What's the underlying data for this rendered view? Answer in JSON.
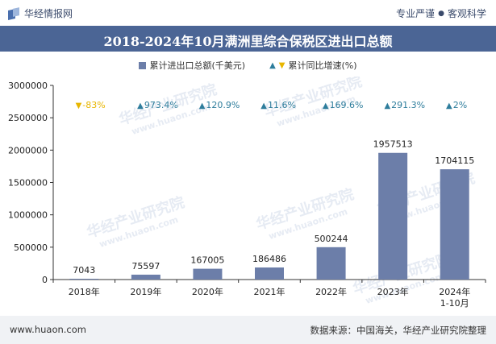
{
  "header": {
    "brand": "华经情报网",
    "slogan_left": "专业严谨",
    "slogan_sep": "●",
    "slogan_right": "客观科学"
  },
  "title": "2018-2024年10月满洲里综合保税区进出口总额",
  "legend": {
    "bar_label": "累计进出口总额(千美元)",
    "line_label": "累计同比增速(%)"
  },
  "watermark": {
    "cn": "华经产业研究院",
    "en": "www.huaon.com"
  },
  "colors": {
    "bar": "#6c7ea9",
    "header_band": "#4b6595",
    "pct_positive": "#2e7d9c",
    "pct_negative": "#e8b600"
  },
  "chart_data": {
    "type": "bar",
    "categories": [
      "2018年",
      "2019年",
      "2020年",
      "2021年",
      "2022年",
      "2023年",
      "2024年\n1-10月"
    ],
    "series": [
      {
        "name": "累计进出口总额(千美元)",
        "values": [
          7043,
          75597,
          167005,
          186486,
          500244,
          1957513,
          1704115
        ]
      },
      {
        "name": "累计同比增速(%)",
        "values": [
          -83,
          973.4,
          120.9,
          11.6,
          169.6,
          291.3,
          2
        ]
      }
    ],
    "value_labels": [
      "7043",
      "75597",
      "167005",
      "186486",
      "500244",
      "1957513",
      "1704115"
    ],
    "growth_labels": [
      "-83%",
      "973.4%",
      "120.9%",
      "11.6%",
      "169.6%",
      "291.3%",
      "2%"
    ],
    "yticks": [
      "0",
      "500000",
      "1000000",
      "1500000",
      "2000000",
      "2500000",
      "3000000"
    ],
    "ylim": [
      0,
      3000000
    ],
    "legend_position": "top-center"
  },
  "footer": {
    "website": "www.huaon.com",
    "source": "数据来源：中国海关，华经产业研究院整理"
  }
}
